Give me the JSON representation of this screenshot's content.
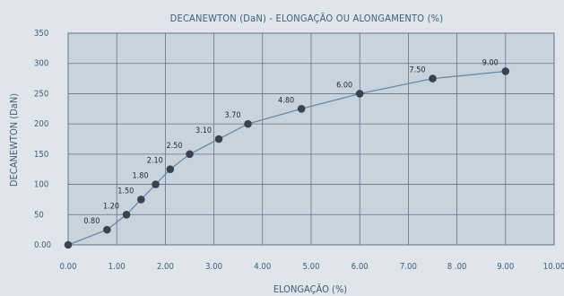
{
  "chart_data": {
    "type": "line",
    "title": "DECANEWTON (DaN) - ELONGAÇÃO OU ALONGAMENTO (%)",
    "xlabel": "ELONGAÇÃO (%)",
    "ylabel": "DECANEWTON (DaN)",
    "xlim": [
      0,
      10
    ],
    "ylim": [
      0,
      350
    ],
    "grid": true,
    "x_ticks": [
      "0.00",
      "1.00",
      "2.00",
      "3.00",
      "4.00",
      "5.00",
      "6.00",
      "7.00",
      "8 .00",
      "9.00",
      "10.00"
    ],
    "y_ticks": [
      "0.00",
      "50",
      "100",
      "150",
      "200",
      "250",
      "300",
      "350"
    ],
    "series": [
      {
        "x": [
          0.0,
          0.8,
          1.2,
          1.5,
          1.8,
          2.1,
          2.5,
          3.1,
          3.7,
          4.8,
          6.0,
          7.5,
          9.0
        ],
        "y": [
          0,
          25,
          50,
          75,
          100,
          125,
          150,
          175,
          200,
          225,
          250,
          275,
          287
        ],
        "labels": [
          "0.80",
          "1.20",
          "1.50",
          "1.80",
          "2.10",
          "2.50",
          "3.10",
          "3.70",
          "4.80",
          "6.00",
          "7.50",
          "9.00"
        ]
      }
    ],
    "colors": {
      "plot_bg": "#c9d3dc",
      "grid": "#5f7688",
      "line": "#6a8aa3",
      "marker": "#37444f",
      "text": "#3f5f78"
    }
  }
}
